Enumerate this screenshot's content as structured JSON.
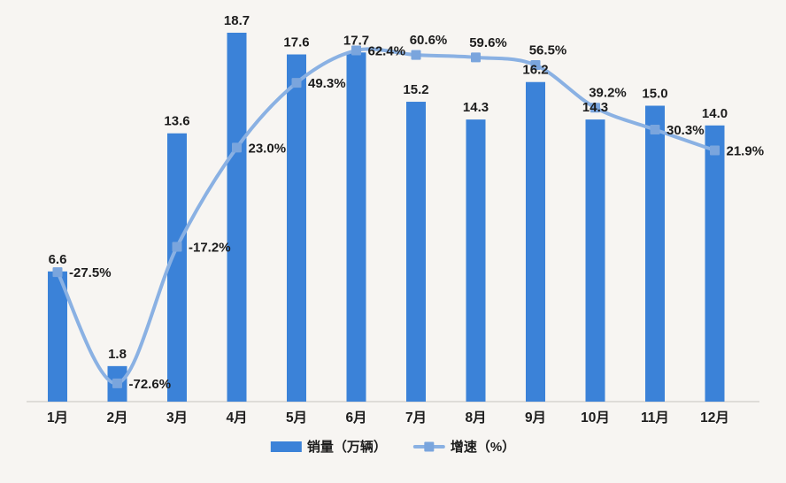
{
  "chart_data": {
    "type": "combo",
    "title": "",
    "categories": [
      "1月",
      "2月",
      "3月",
      "4月",
      "5月",
      "6月",
      "7月",
      "8月",
      "9月",
      "10月",
      "11月",
      "12月"
    ],
    "series": [
      {
        "name": "销量（万辆）",
        "type": "bar",
        "axis": "primary",
        "color": "#3b82d8",
        "values": [
          6.6,
          1.8,
          13.6,
          18.7,
          17.6,
          17.7,
          15.2,
          14.3,
          16.2,
          14.3,
          15.0,
          14.0
        ]
      },
      {
        "name": "增速（%）",
        "type": "line",
        "axis": "secondary",
        "color": "#8ab1e3",
        "marker_color": "#7aa5dd",
        "values": [
          -27.5,
          -72.6,
          -17.2,
          23.0,
          49.3,
          62.4,
          60.6,
          59.6,
          56.5,
          39.2,
          30.3,
          21.9
        ],
        "label_suffix": "%",
        "label_positions": [
          "right",
          "right",
          "right",
          "right",
          "right",
          "right",
          "above",
          "above",
          "above",
          "above",
          "right",
          "right"
        ]
      }
    ],
    "primary_ylim": [
      0,
      20
    ],
    "secondary_ylim": [
      -80,
      80
    ],
    "grid": false,
    "y_axis_ticks_visible": false,
    "legend_position": "bottom",
    "axis_line_color": "#d6d3cf",
    "label_color": "#1c1c1c",
    "background_color": "#f7f5f2"
  }
}
